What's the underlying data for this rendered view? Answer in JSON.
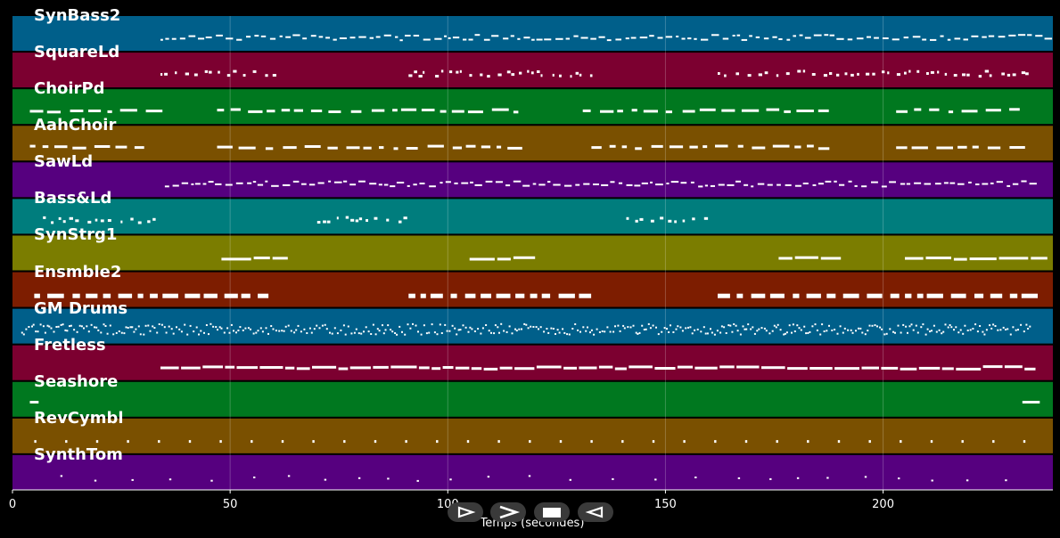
{
  "chart_data": {
    "type": "piano-roll",
    "xlabel": "Temps (secondes)",
    "x_ticks": [
      0,
      50,
      100,
      150,
      200
    ],
    "xlim": [
      0,
      239
    ],
    "grid": true,
    "tracks": [
      {
        "name": "SynBass2",
        "color": "#005f8a",
        "segments": [
          [
            34,
            239
          ]
        ],
        "style": "dense-small"
      },
      {
        "name": "SquareLd",
        "color": "#7c0030",
        "segments": [
          [
            34,
            60
          ],
          [
            91,
            133
          ],
          [
            162,
            234
          ]
        ],
        "style": "sparse"
      },
      {
        "name": "ChoirPd",
        "color": "#00781f",
        "segments": [
          [
            4,
            32
          ],
          [
            47,
            116
          ],
          [
            131,
            188
          ],
          [
            203,
            231
          ]
        ],
        "style": "medium"
      },
      {
        "name": "AahChoir",
        "color": "#7a5000",
        "segments": [
          [
            4,
            32
          ],
          [
            47,
            117
          ],
          [
            133,
            188
          ],
          [
            203,
            231
          ]
        ],
        "style": "medium"
      },
      {
        "name": "SawLd",
        "color": "#56007f",
        "segments": [
          [
            35,
            235
          ]
        ],
        "style": "dense-small"
      },
      {
        "name": "Bass&Ld",
        "color": "#007d7d",
        "segments": [
          [
            7,
            33
          ],
          [
            70,
            90
          ],
          [
            141,
            160
          ]
        ],
        "style": "sparse"
      },
      {
        "name": "SynStrg1",
        "color": "#7b7d00",
        "segments": [
          [
            48,
            62
          ],
          [
            105,
            119
          ],
          [
            176,
            190
          ],
          [
            205,
            234
          ]
        ],
        "style": "long"
      },
      {
        "name": "Ensmble2",
        "color": "#7d1d00",
        "segments": [
          [
            5,
            60
          ],
          [
            91,
            134
          ],
          [
            162,
            234
          ]
        ],
        "style": "thick"
      },
      {
        "name": "GM Drums",
        "color": "#005f8a",
        "segments": [
          [
            2,
            234
          ]
        ],
        "style": "drums"
      },
      {
        "name": "Fretless",
        "color": "#7c0030",
        "segments": [
          [
            34,
            233
          ]
        ],
        "style": "long-thin"
      },
      {
        "name": "Seashore",
        "color": "#00781f",
        "segments": [
          [
            4,
            6
          ],
          [
            232,
            236
          ]
        ],
        "style": "blocks"
      },
      {
        "name": "RevCymbl",
        "color": "#7a5000",
        "segments": [
          [
            5,
            233
          ]
        ],
        "style": "hits"
      },
      {
        "name": "SynthTom",
        "color": "#56007f",
        "segments": [
          [
            11,
            234
          ]
        ],
        "style": "toms"
      }
    ]
  },
  "controls": {
    "buttons": [
      {
        "name": "play-button",
        "icon": "play-outline-icon"
      },
      {
        "name": "next-button",
        "icon": "chevron-right-icon"
      },
      {
        "name": "stop-button",
        "icon": "stop-icon"
      },
      {
        "name": "rewind-button",
        "icon": "rewind-outline-icon"
      }
    ]
  }
}
